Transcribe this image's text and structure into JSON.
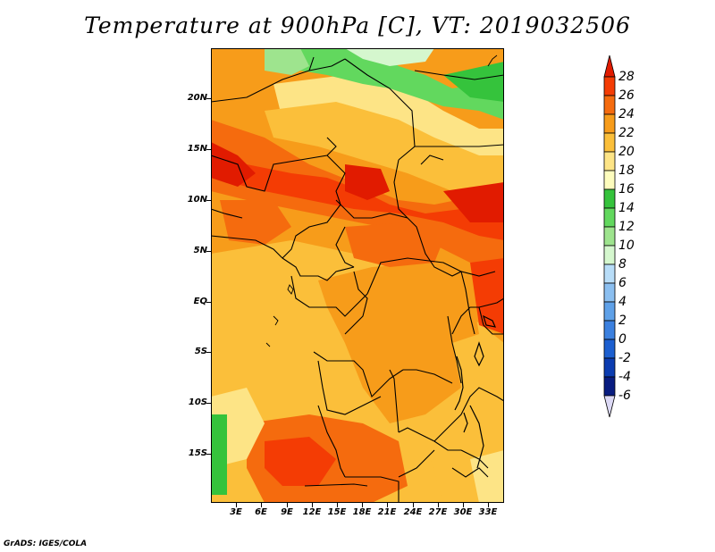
{
  "title": "Temperature at 900hPa [C], VT: 2019032506",
  "credit": "GrADS: IGES/COLA",
  "axes": {
    "y_ticks": [
      "20N",
      "15N",
      "10N",
      "5N",
      "EQ",
      "5S",
      "10S",
      "15S"
    ],
    "x_ticks": [
      "3E",
      "6E",
      "9E",
      "12E",
      "15E",
      "18E",
      "21E",
      "24E",
      "27E",
      "30E",
      "33E"
    ]
  },
  "colorbar": {
    "labels": [
      "28",
      "26",
      "24",
      "22",
      "20",
      "18",
      "16",
      "14",
      "12",
      "10",
      "8",
      "6",
      "4",
      "2",
      "0",
      "-2",
      "-4",
      "-6"
    ],
    "colors": [
      "#e11b00",
      "#f43c04",
      "#f56b0e",
      "#f79c1a",
      "#fbbf3a",
      "#fde486",
      "#fdfcbd",
      "#35c33c",
      "#62d85e",
      "#9ee48e",
      "#d5f7ce",
      "#b8ddf8",
      "#8bbff0",
      "#5fa1e8",
      "#3b80df",
      "#1c5fd0",
      "#0b3cb0",
      "#081c80",
      "#dcd9f5"
    ]
  }
}
